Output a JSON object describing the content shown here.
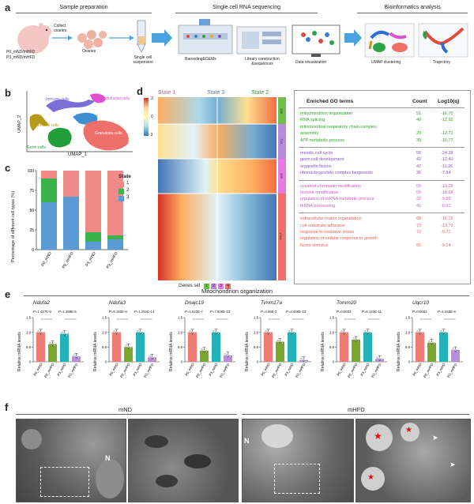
{
  "panel_labels": [
    "a",
    "b",
    "c",
    "d",
    "e",
    "f"
  ],
  "a": {
    "headers": [
      "Sample preparation",
      "Single cell RNA sequencing",
      "Bioinformatics analysis"
    ],
    "mouse_labels": [
      "P0_mND/mHFD",
      "P3_mND/mHFD"
    ],
    "steps": [
      "Collect ovaries",
      "Ovaries",
      "Single cell suspension",
      "Barcoding&GEMs",
      "Library construction &sequences",
      "Data visualization",
      "UMAP clustering",
      "Trajectory"
    ]
  },
  "b": {
    "xlabel": "UMAP_1",
    "ylabel": "UMAP_2",
    "clusters": [
      {
        "label": "Immune cells",
        "color": "#6b5fd3"
      },
      {
        "label": "Endothelial cells",
        "color": "#e04fcf"
      },
      {
        "label": "Erythrocytes",
        "color": "#3c8fd0"
      },
      {
        "label": "Stromal cells",
        "color": "#b89a1a"
      },
      {
        "label": "Germ cells",
        "color": "#1f9e3a"
      },
      {
        "label": "Granulosa cells",
        "color": "#ef6f6a"
      }
    ]
  },
  "c": {
    "ylabel": "Percentage of different cell types (%)",
    "legend_title": "State",
    "chart_data": {
      "type": "bar",
      "stacked": true,
      "categories": [
        "P0_mND",
        "P0_mHFD",
        "P3_mND",
        "P3_mHFD"
      ],
      "series": [
        {
          "name": "1",
          "color": "#f08a86",
          "values": [
            10,
            33,
            78,
            82
          ]
        },
        {
          "name": "2",
          "color": "#3bb34a",
          "values": [
            30,
            0,
            12,
            5
          ]
        },
        {
          "name": "3",
          "color": "#5b9bd5",
          "values": [
            60,
            67,
            10,
            13
          ]
        }
      ],
      "ylim": [
        0,
        100
      ],
      "yticks": [
        0,
        25,
        50,
        75,
        100
      ]
    }
  },
  "d": {
    "states": [
      "State 1",
      "State 3",
      "State 2"
    ],
    "colorbar": [
      "3",
      "0",
      "-3"
    ],
    "gene_sets_label": "Genes set",
    "gene_sets": [
      "1",
      "2",
      "3",
      "4"
    ],
    "side_labels": [
      "266",
      "719",
      "665",
      "1784"
    ],
    "table_headers": [
      "Enriched GO terms",
      "Count",
      "Log10(q)"
    ],
    "go_groups": [
      {
        "color": "#2aa52a",
        "rows": [
          {
            "term": "mitochondrion organization",
            "count": "51",
            "q": "-16.70"
          },
          {
            "term": "RNA splicing",
            "count": "40",
            "q": "-12.92"
          },
          {
            "term": "mitochondrial respiratory chain complex",
            "count": "",
            "q": ""
          },
          {
            "term": "assembly",
            "count": "20",
            "q": "-12.72"
          },
          {
            "term": "ATP metabolic process",
            "count": "30",
            "q": "-10.77"
          }
        ]
      },
      {
        "color": "#8a4fc9",
        "rows": [
          {
            "term": "meiotic cell cycle",
            "count": "56",
            "q": "-24.28"
          },
          {
            "term": "germ cell development",
            "count": "42",
            "q": "-12.40"
          },
          {
            "term": "organelle fission",
            "count": "47",
            "q": "-11.26"
          },
          {
            "term": "ribonucleoprotein complex biogenesis",
            "count": "36",
            "q": "-7.84"
          }
        ]
      },
      {
        "color": "#d056c7",
        "rows": [
          {
            "term": "covalent chromatin modification",
            "count": "56",
            "q": "-19.28"
          },
          {
            "term": "histone modification",
            "count": "56",
            "q": "-18.68"
          },
          {
            "term": "regulation of mRNA metabolic process",
            "count": "32",
            "q": "-9.99"
          },
          {
            "term": "mRNA processing",
            "count": "41",
            "q": "-8.31"
          }
        ]
      },
      {
        "color": "#e8625e",
        "rows": [
          {
            "term": "extracellular matrix organization",
            "count": "68",
            "q": "-16.15"
          },
          {
            "term": "cell-substrate adhesion",
            "count": "73",
            "q": "-13.79"
          },
          {
            "term": "response to oxidative stress",
            "count": "72",
            "q": "-9.71"
          },
          {
            "term": "regulation of cellular response to growth",
            "count": "",
            "q": ""
          },
          {
            "term": "factor stimulus",
            "count": "55",
            "q": "-9.14"
          }
        ]
      }
    ]
  },
  "e": {
    "title": "Mitochondrion organization",
    "ylabel": "Relative mRNA levels",
    "chart_data": {
      "type": "bar",
      "categories": [
        "P0_mND",
        "P0_mHFD",
        "P3_mND",
        "P3_mHFD"
      ],
      "colors": [
        "#ef7b74",
        "#78a82e",
        "#22b3b8",
        "#b88ee0"
      ],
      "ylim": [
        0,
        1.5
      ],
      "yticks": [
        "0",
        "0.5",
        "1.0",
        "1.5"
      ],
      "genes": [
        {
          "name": "Ndufa2",
          "values": [
            1.0,
            0.6,
            0.95,
            0.18
          ],
          "p1": "P=1.417E-9",
          "p2": "P=1.359E-5"
        },
        {
          "name": "Ndufa3",
          "values": [
            1.0,
            0.5,
            1.0,
            0.15
          ],
          "p1": "P=9.160E-9",
          "p2": "P=1.251E-14"
        },
        {
          "name": "Dnajc19",
          "values": [
            1.0,
            0.38,
            1.0,
            0.22
          ],
          "p1": "P=1.623E-7",
          "p2": "P=7.928E-13"
        },
        {
          "name": "Timm17a",
          "values": [
            1.0,
            0.68,
            1.0,
            0.06
          ],
          "p1": "P=3.66E-3",
          "p2": "P=2.408E-13"
        },
        {
          "name": "Tomm20",
          "values": [
            1.0,
            0.75,
            1.0,
            0.1
          ],
          "p1": "P=0.0004",
          "p2": "P=6.133E-11"
        },
        {
          "name": "Uqcr10",
          "values": [
            1.0,
            0.65,
            1.0,
            0.4
          ],
          "p1": "P=0.0062",
          "p2": "P=1.045E-8"
        }
      ]
    }
  },
  "f": {
    "groups": [
      "mND",
      "mHFD"
    ],
    "nucleus_mark": "N"
  }
}
